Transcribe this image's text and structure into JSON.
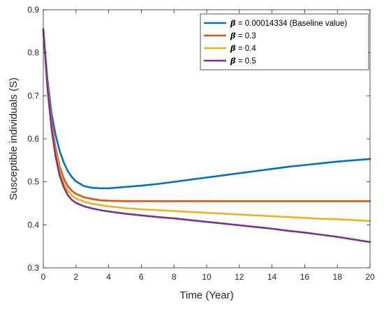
{
  "chart_data": {
    "type": "line",
    "xlabel": "Time (Year)",
    "ylabel": "Susceptible individuals (S)",
    "xlim": [
      0,
      20
    ],
    "ylim": [
      0.3,
      0.9
    ],
    "xticks": [
      "0",
      "2",
      "4",
      "6",
      "8",
      "10",
      "12",
      "14",
      "16",
      "18",
      "20"
    ],
    "yticks": [
      "0.3",
      "0.4",
      "0.5",
      "0.6",
      "0.7",
      "0.8",
      "0.9"
    ],
    "grid": false,
    "legend_position": "top-right",
    "x": [
      0,
      0.25,
      0.5,
      0.75,
      1,
      1.25,
      1.5,
      1.75,
      2,
      2.5,
      3,
      3.5,
      4,
      5,
      6,
      7,
      8,
      9,
      10,
      11,
      12,
      13,
      14,
      15,
      16,
      17,
      18,
      19,
      20
    ],
    "series": [
      {
        "symbol": "β",
        "label": " = 0.00014334 (Baseline value)",
        "color": "#0072BD",
        "values": [
          0.855,
          0.74,
          0.66,
          0.61,
          0.572,
          0.545,
          0.525,
          0.511,
          0.501,
          0.49,
          0.486,
          0.485,
          0.485,
          0.488,
          0.491,
          0.495,
          0.5,
          0.505,
          0.51,
          0.515,
          0.52,
          0.525,
          0.53,
          0.535,
          0.539,
          0.543,
          0.547,
          0.55,
          0.553
        ]
      },
      {
        "symbol": "β",
        "label": " = 0.3",
        "color": "#D95319",
        "values": [
          0.855,
          0.73,
          0.64,
          0.58,
          0.535,
          0.508,
          0.49,
          0.479,
          0.472,
          0.464,
          0.46,
          0.457,
          0.456,
          0.455,
          0.455,
          0.455,
          0.455,
          0.455,
          0.455,
          0.455,
          0.455,
          0.455,
          0.455,
          0.455,
          0.455,
          0.455,
          0.455,
          0.455,
          0.455
        ]
      },
      {
        "symbol": "β",
        "label": " = 0.4",
        "color": "#EDB120",
        "values": [
          0.855,
          0.725,
          0.632,
          0.57,
          0.525,
          0.497,
          0.479,
          0.468,
          0.461,
          0.454,
          0.449,
          0.446,
          0.443,
          0.439,
          0.436,
          0.434,
          0.432,
          0.43,
          0.428,
          0.426,
          0.424,
          0.422,
          0.42,
          0.418,
          0.416,
          0.414,
          0.413,
          0.411,
          0.409
        ]
      },
      {
        "symbol": "β",
        "label": " = 0.5",
        "color": "#7E2F8E",
        "values": [
          0.855,
          0.72,
          0.625,
          0.56,
          0.515,
          0.488,
          0.469,
          0.458,
          0.451,
          0.443,
          0.438,
          0.434,
          0.431,
          0.426,
          0.422,
          0.418,
          0.415,
          0.411,
          0.407,
          0.403,
          0.399,
          0.395,
          0.391,
          0.386,
          0.382,
          0.377,
          0.372,
          0.366,
          0.36
        ]
      }
    ]
  }
}
